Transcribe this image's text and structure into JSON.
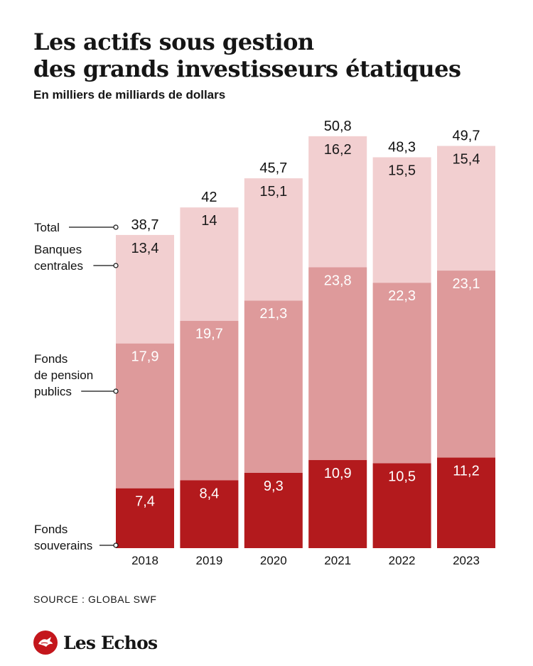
{
  "header": {
    "title_line1": "Les actifs sous gestion",
    "title_line2": "des grands investisseurs étatiques",
    "subtitle": "En milliers de milliards de dollars"
  },
  "footer": {
    "source": "SOURCE : GLOBAL SWF",
    "brand": "Les Echos"
  },
  "colors": {
    "souverains": "#b31a1d",
    "pension": "#de9a9b",
    "banques": "#f2cfd0"
  },
  "chart_data": {
    "type": "bar",
    "stacked": true,
    "categories": [
      "2018",
      "2019",
      "2020",
      "2021",
      "2022",
      "2023"
    ],
    "series": [
      {
        "name": "Fonds souverains",
        "values": [
          7.4,
          8.4,
          9.3,
          10.9,
          10.5,
          11.2
        ],
        "labels": [
          "7,4",
          "8,4",
          "9,3",
          "10,9",
          "10,5",
          "11,2"
        ]
      },
      {
        "name": "Fonds de pension publics",
        "values": [
          17.9,
          19.7,
          21.3,
          23.8,
          22.3,
          23.1
        ],
        "labels": [
          "17,9",
          "19,7",
          "21,3",
          "23,8",
          "22,3",
          "23,1"
        ]
      },
      {
        "name": "Banques centrales",
        "values": [
          13.4,
          14,
          15.1,
          16.2,
          15.5,
          15.4
        ],
        "labels": [
          "13,4",
          "14",
          "15,1",
          "16,2",
          "15,5",
          "15,4"
        ]
      }
    ],
    "totals": {
      "name": "Total",
      "values": [
        38.7,
        42,
        45.7,
        50.8,
        48.3,
        49.7
      ],
      "labels": [
        "38,7",
        "42",
        "45,7",
        "50,8",
        "48,3",
        "49,7"
      ]
    },
    "legend_lines": [
      [
        "Total"
      ],
      [
        "Banques",
        "centrales"
      ],
      [
        "Fonds",
        "de pension",
        "publics"
      ],
      [
        "Fonds",
        "souverains"
      ]
    ],
    "ylim": [
      0,
      50.8
    ],
    "grid": false,
    "legend_position": "left"
  }
}
